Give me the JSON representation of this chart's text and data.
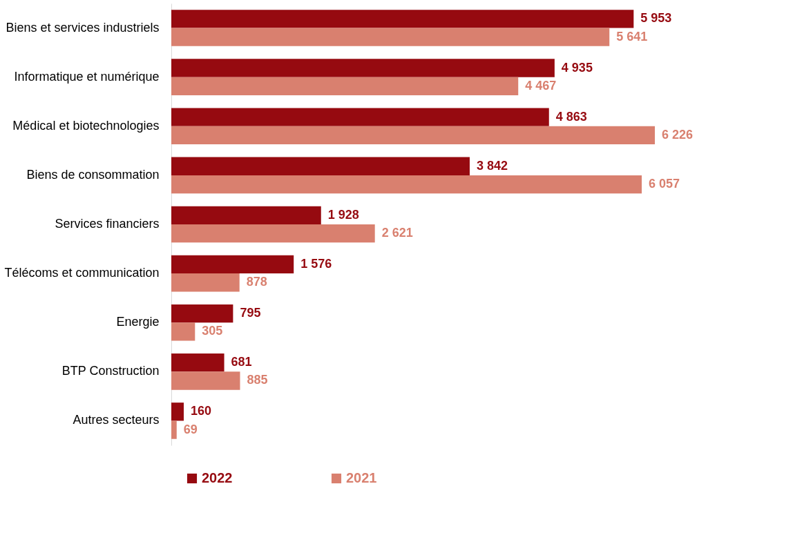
{
  "chart_data": {
    "type": "bar",
    "orientation": "horizontal",
    "categories": [
      "Biens et services industriels",
      "Informatique et numérique",
      "Médical et biotechnologies",
      "Biens de consommation",
      "Services financiers",
      "Télécoms et communication",
      "Energie",
      "BTP Construction",
      "Autres secteurs"
    ],
    "series": [
      {
        "name": "2022",
        "color": "#960a10",
        "values": [
          5953,
          4935,
          4863,
          3842,
          1928,
          1576,
          795,
          681,
          160
        ],
        "value_labels": [
          "5 953",
          "4 935",
          "4 863",
          "3 842",
          "1 928",
          "1 576",
          "795",
          "681",
          "160"
        ]
      },
      {
        "name": "2021",
        "color": "#d9806f",
        "values": [
          5641,
          4467,
          6226,
          6057,
          2621,
          878,
          305,
          885,
          69
        ],
        "value_labels": [
          "5 641",
          "4 467",
          "6 226",
          "6 057",
          "2 621",
          "878",
          "305",
          "885",
          "69"
        ]
      }
    ],
    "legend": "bottom",
    "grid": false
  }
}
